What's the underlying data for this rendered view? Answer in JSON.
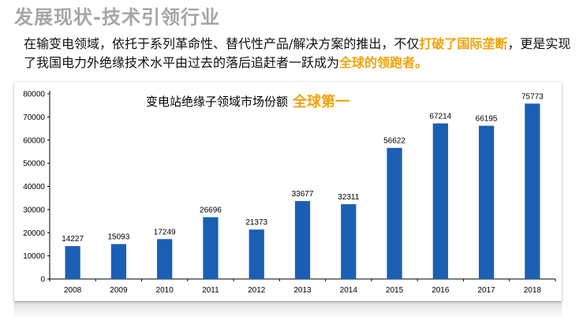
{
  "slide": {
    "title": "发展现状-技术引领行业",
    "intro_part1": "在输变电领域，依托于系列革命性、替代性产品/解决方案的推出，不仅",
    "intro_hl1": "打破了国际垄断",
    "intro_part2": "，更是实现了我国电力外绝缘技术水平由过去的落后追赶者一跃成为",
    "intro_hl2": "全球的领跑者。"
  },
  "colors": {
    "accent": "#f0a30a",
    "bar": "#1a5fb4",
    "title_gray": "#a6a6a6"
  },
  "chart_data": {
    "type": "bar",
    "title": "变电站绝缘子领域市场份额",
    "title_highlight": "全球第一",
    "categories": [
      "2008",
      "2009",
      "2010",
      "2011",
      "2012",
      "2013",
      "2014",
      "2015",
      "2016",
      "2017",
      "2018"
    ],
    "values": [
      14227,
      15093,
      17249,
      26696,
      21373,
      33677,
      32311,
      56622,
      67214,
      66195,
      75773
    ],
    "ylim": [
      0,
      80000
    ],
    "yticks": [
      "0",
      "10000",
      "20000",
      "30000",
      "40000",
      "50000",
      "60000",
      "70000",
      "80000"
    ],
    "xlabel": "",
    "ylabel": "",
    "grid": false
  }
}
